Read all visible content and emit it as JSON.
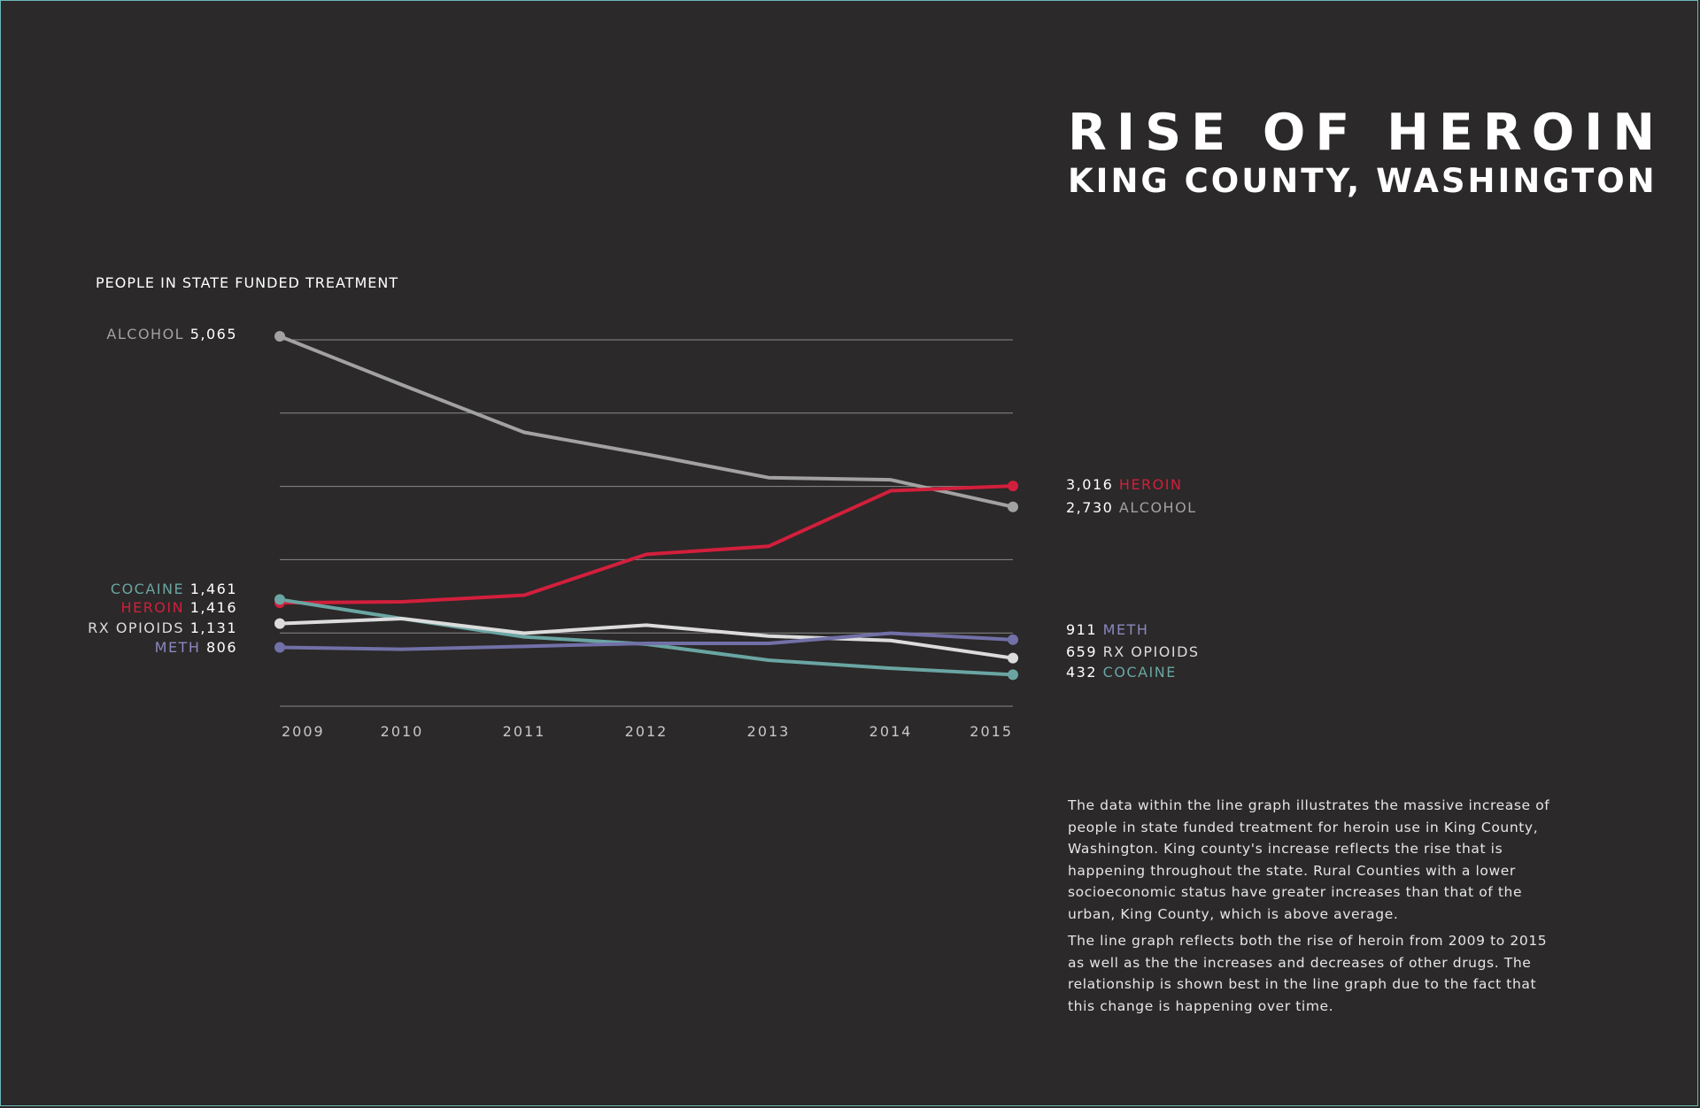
{
  "title": "RISE OF HEROIN",
  "subtitle": "KING COUNTY, WASHINGTON",
  "description": [
    "The data within the line graph illustrates the massive increase of people in state funded treatment for heroin use in King County, Washington. King county's increase reflects the rise that is happening throughout the state. Rural Counties with a lower socioeconomic status have greater increases than that of the urban, King County, which is above average.",
    "The line graph reflects both the rise of heroin from 2009 to 2015 as well as the the increases and decreases of other drugs. The relationship is shown best in the line graph due to the fact that this change is happening over time."
  ],
  "start_labels": [
    {
      "name": "ALCOHOL",
      "value": "5,065"
    },
    {
      "name": "COCAINE",
      "value": "1,461"
    },
    {
      "name": "HEROIN",
      "value": "1,416"
    },
    {
      "name": "RX OPIOIDS",
      "value": "1,131"
    },
    {
      "name": "METH",
      "value": "806"
    }
  ],
  "end_labels": [
    {
      "name": "HEROIN",
      "value": "3,016"
    },
    {
      "name": "ALCOHOL",
      "value": "2,730"
    },
    {
      "name": "METH",
      "value": "911"
    },
    {
      "name": "RX OPIOIDS",
      "value": "659"
    },
    {
      "name": "COCAINE",
      "value": "432"
    }
  ],
  "chart_data": {
    "type": "line",
    "title": "RISE OF HEROIN",
    "subtitle": "KING COUNTY, WASHINGTON",
    "ylabel": "PEOPLE IN STATE FUNDED TREATMENT",
    "xlabel": "",
    "x": [
      "2009",
      "2010",
      "2011",
      "2012",
      "2013",
      "2014",
      "2015"
    ],
    "ylim": [
      0,
      5065
    ],
    "grid": true,
    "legend": "direct labels at line ends",
    "series": [
      {
        "name": "ALCOHOL",
        "color": "#a2a2a2",
        "values": [
          5065,
          4400,
          3750,
          3450,
          3130,
          3100,
          2730
        ]
      },
      {
        "name": "HEROIN",
        "color": "#d21f3c",
        "values": [
          1416,
          1430,
          1520,
          2080,
          2190,
          2950,
          3016
        ]
      },
      {
        "name": "COCAINE",
        "color": "#6aa5a3",
        "values": [
          1461,
          1200,
          950,
          850,
          630,
          520,
          432
        ]
      },
      {
        "name": "RX OPIOIDS",
        "color": "#dcdcdc",
        "values": [
          1131,
          1200,
          1000,
          1110,
          960,
          900,
          659
        ]
      },
      {
        "name": "METH",
        "color": "#7270a8",
        "values": [
          806,
          780,
          820,
          860,
          860,
          1000,
          911
        ]
      }
    ]
  },
  "colors": {
    "background": "#2b2929",
    "alcohol": "#a2a2a2",
    "heroin": "#d21f3c",
    "cocaine": "#6aa5a3",
    "rx_opioids": "#dcdcdc",
    "meth": "#8a88c0",
    "grid": "#8a8a8a",
    "frame": "#6bb8b8"
  }
}
